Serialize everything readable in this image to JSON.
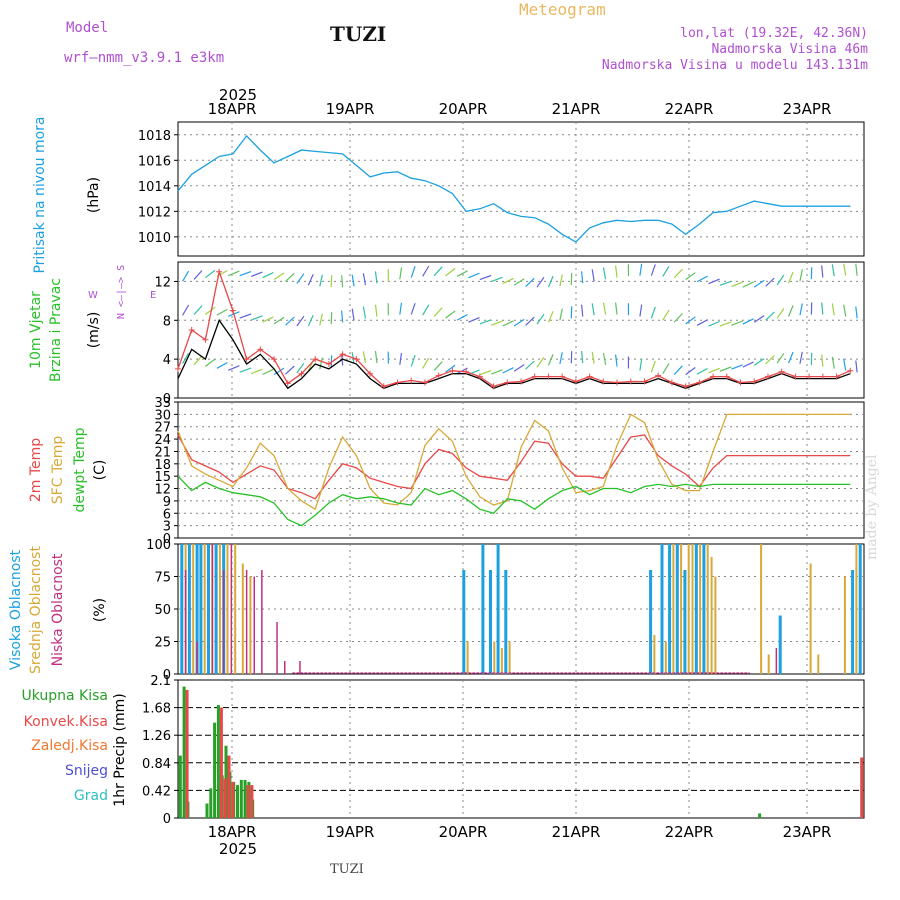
{
  "header": {
    "model_label": "Model",
    "model": "wrf–nmm_v3.9.1 e3km",
    "station": "TUZI",
    "title": "Meteogram",
    "location": "lon,lat (19.32E, 42.36N)",
    "altitude": "Nadmorska Visina 46m",
    "model_altitude": "Nadmorska Visina u modelu 143.131m",
    "footer_station": "TUZI",
    "watermark": "made by Angel"
  },
  "colors": {
    "pressure": "#1ca0e0",
    "temp2m": "#e84848",
    "sfc": "#d8a838",
    "dew": "#28c028",
    "high_cloud": "#1ca0e0",
    "mid_cloud": "#d8a838",
    "low_cloud": "#c03080",
    "total_precip": "#28a028",
    "conv_precip": "#e84848",
    "freezing": "#f07830",
    "snow": "#5050d8",
    "hail": "#30c0c0"
  },
  "chart_data": [
    {
      "type": "line",
      "id": "pressure",
      "ylabel": "Pritisak na nivou mora",
      "unit": "(hPa)",
      "ylim": [
        1008.5,
        1019
      ],
      "yticks": [
        "1010",
        "1012",
        "1014",
        "1016",
        "1018"
      ],
      "x_top_labels": [
        "18APR",
        "19APR",
        "20APR",
        "21APR",
        "22APR",
        "23APR"
      ],
      "year_label": "2025",
      "x_hours": [
        0,
        3,
        6,
        9,
        12,
        15,
        18,
        21,
        24,
        27,
        30,
        33,
        36,
        39,
        42,
        45,
        48,
        51,
        54,
        57,
        60,
        63,
        66,
        69,
        72,
        75,
        78,
        81,
        84,
        87,
        90,
        93,
        96,
        99,
        102,
        105,
        108,
        111,
        114,
        117,
        120,
        123,
        126,
        129,
        132,
        135,
        138,
        141,
        144,
        147
      ],
      "values": [
        1013.6,
        1014.9,
        1015.6,
        1016.3,
        1016.5,
        1017.9,
        1016.8,
        1015.8,
        1016.3,
        1016.8,
        1016.7,
        1016.6,
        1016.5,
        1015.6,
        1014.7,
        1015.0,
        1015.1,
        1014.6,
        1014.4,
        1014.0,
        1013.4,
        1012.0,
        1012.2,
        1012.6,
        1011.9,
        1011.6,
        1011.5,
        1011.0,
        1010.2,
        1009.6,
        1010.7,
        1011.1,
        1011.3,
        1011.2,
        1011.3,
        1011.3,
        1011.0,
        1010.2,
        1011.0,
        1011.9,
        1012.0,
        1012.4,
        1012.8,
        1012.6,
        1012.4,
        1012.4,
        1012.4,
        1012.4,
        1012.4,
        1012.4
      ]
    },
    {
      "type": "line",
      "id": "wind",
      "ylabel_lines": [
        "10m Vjetar",
        "Brzina i Pravac"
      ],
      "unit": "(m/s)",
      "ylim": [
        0,
        14
      ],
      "yticks": [
        "0",
        "4",
        "8",
        "12"
      ],
      "compass": "N\n<–|–>\nS",
      "compass_w": "W",
      "compass_e": "E",
      "series": [
        {
          "name": "speed",
          "values": [
            2.0,
            5.0,
            4.0,
            8.0,
            6.0,
            3.5,
            4.5,
            3.0,
            1.0,
            2.0,
            3.5,
            3.0,
            4.0,
            3.5,
            2.0,
            1.0,
            1.5,
            1.5,
            1.5,
            2.0,
            2.5,
            2.5,
            2.0,
            1.0,
            1.5,
            1.5,
            2.0,
            2.0,
            2.0,
            1.5,
            2.0,
            1.5,
            1.5,
            1.5,
            1.5,
            2.0,
            1.5,
            1.0,
            1.5,
            2.0,
            2.0,
            1.5,
            1.5,
            2.0,
            2.5,
            2.0,
            2.0,
            2.0,
            2.0,
            2.5
          ]
        },
        {
          "name": "gust",
          "values": [
            3.0,
            7.0,
            6.0,
            13.0,
            9.0,
            4.0,
            5.0,
            4.0,
            1.5,
            2.5,
            4.0,
            3.5,
            4.5,
            4.0,
            2.5,
            1.2,
            1.6,
            1.8,
            1.6,
            2.3,
            2.8,
            2.7,
            2.2,
            1.2,
            1.6,
            1.7,
            2.2,
            2.2,
            2.2,
            1.7,
            2.2,
            1.7,
            1.6,
            1.7,
            1.7,
            2.3,
            1.6,
            1.2,
            1.6,
            2.2,
            2.2,
            1.6,
            1.7,
            2.2,
            2.7,
            2.2,
            2.2,
            2.2,
            2.2,
            2.8
          ]
        }
      ]
    },
    {
      "type": "line",
      "id": "temperature",
      "ylabel_lines": [
        "2m Temp",
        "SFC Temp",
        "dewpt Temp"
      ],
      "unit": "(C)",
      "ylim": [
        0,
        33
      ],
      "yticks": [
        "0",
        "3",
        "6",
        "9",
        "12",
        "15",
        "18",
        "21",
        "24",
        "27",
        "30",
        "33"
      ],
      "series": [
        {
          "name": "2m Temp",
          "values": [
            25.0,
            19.0,
            17.5,
            16.0,
            13.5,
            15.5,
            17.5,
            16.5,
            12.0,
            11.0,
            9.5,
            14.0,
            18.0,
            17.0,
            14.5,
            13.5,
            12.5,
            12.0,
            18.0,
            21.5,
            20.5,
            17.0,
            15.0,
            14.5,
            14.0,
            18.5,
            23.5,
            23.0,
            18.0,
            15.0,
            15.0,
            14.5,
            19.5,
            24.5,
            25.0,
            20.0,
            17.5,
            15.5,
            12.5,
            17.0,
            20.0,
            20.0,
            20.0,
            20.0,
            20.0,
            20.0,
            20.0,
            20.0,
            20.0,
            20.0
          ]
        },
        {
          "name": "SFC Temp",
          "values": [
            26.0,
            17.5,
            15.5,
            14.0,
            12.5,
            17.0,
            23.0,
            20.0,
            12.0,
            9.0,
            7.0,
            17.0,
            24.5,
            20.0,
            12.0,
            8.5,
            8.0,
            11.0,
            22.5,
            26.5,
            23.5,
            15.0,
            10.0,
            8.0,
            9.0,
            22.0,
            28.5,
            26.0,
            17.0,
            11.0,
            11.5,
            12.5,
            22.5,
            30.0,
            28.0,
            19.0,
            13.0,
            11.5,
            11.5,
            21.0,
            30.0,
            30.0,
            30.0,
            30.0,
            30.0,
            30.0,
            30.0,
            30.0,
            30.0,
            30.0
          ]
        },
        {
          "name": "dewpt Temp",
          "values": [
            15.0,
            11.5,
            13.5,
            12.0,
            11.0,
            10.5,
            10.0,
            8.5,
            4.5,
            3.0,
            5.5,
            8.5,
            10.5,
            9.5,
            10.0,
            9.5,
            8.5,
            8.0,
            12.0,
            10.5,
            11.5,
            9.5,
            7.0,
            6.0,
            9.5,
            9.0,
            7.0,
            9.5,
            11.5,
            12.5,
            10.5,
            12.0,
            12.0,
            11.0,
            12.5,
            13.0,
            12.5,
            13.0,
            12.5,
            13.0,
            13.0,
            13.0,
            13.0,
            13.0,
            13.0,
            13.0,
            13.0,
            13.0,
            13.0,
            13.0
          ]
        }
      ]
    },
    {
      "type": "bar",
      "id": "clouds",
      "ylabel_lines": [
        "Visoka Oblacnost",
        "Srednja Oblacnost",
        "Niska Oblacnost"
      ],
      "unit": "(%)",
      "ylim": [
        0,
        100
      ],
      "yticks": [
        "0",
        "25",
        "50",
        "75",
        "100"
      ],
      "series": [
        {
          "name": "Visoka Oblacnost",
          "bars": [
            [
              1,
              100
            ],
            [
              3,
              100
            ],
            [
              5,
              100
            ],
            [
              6,
              100
            ],
            [
              8,
              100
            ],
            [
              10,
              100
            ],
            [
              12,
              100
            ],
            [
              75,
              80
            ],
            [
              80,
              100
            ],
            [
              82,
              80
            ],
            [
              84,
              100
            ],
            [
              86,
              80
            ],
            [
              124,
              80
            ],
            [
              127,
              100
            ],
            [
              129,
              100
            ],
            [
              131,
              100
            ],
            [
              133,
              80
            ],
            [
              136,
              100
            ],
            [
              138,
              100
            ],
            [
              158,
              45
            ],
            [
              177,
              80
            ],
            [
              179,
              100
            ]
          ]
        },
        {
          "name": "Srednja Oblacnost",
          "bars": [
            [
              2,
              100
            ],
            [
              4,
              100
            ],
            [
              7,
              100
            ],
            [
              9,
              100
            ],
            [
              11,
              100
            ],
            [
              13,
              100
            ],
            [
              15,
              100
            ],
            [
              17,
              85
            ],
            [
              19,
              75
            ],
            [
              76,
              25
            ],
            [
              83,
              25
            ],
            [
              85,
              20
            ],
            [
              87,
              25
            ],
            [
              125,
              30
            ],
            [
              128,
              25
            ],
            [
              130,
              100
            ],
            [
              132,
              100
            ],
            [
              134,
              100
            ],
            [
              135,
              100
            ],
            [
              137,
              100
            ],
            [
              139,
              100
            ],
            [
              140,
              90
            ],
            [
              141,
              75
            ],
            [
              153,
              100
            ],
            [
              155,
              15
            ],
            [
              166,
              85
            ],
            [
              168,
              15
            ],
            [
              175,
              75
            ],
            [
              178,
              100
            ]
          ]
        },
        {
          "name": "Niska Oblacnost",
          "bars": [
            [
              2,
              80
            ],
            [
              5,
              25
            ],
            [
              9,
              100
            ],
            [
              12,
              80
            ],
            [
              14,
              100
            ],
            [
              18,
              80
            ],
            [
              20,
              75
            ],
            [
              22,
              80
            ],
            [
              26,
              40
            ],
            [
              28,
              10
            ],
            [
              32,
              10
            ],
            [
              157,
              20
            ]
          ]
        }
      ]
    },
    {
      "type": "bar",
      "id": "precip",
      "ylabel": "1hr Precip",
      "unit": "(mm)",
      "ylim": [
        0,
        2.1
      ],
      "yticks": [
        "0",
        "0.42",
        "0.84",
        "1.26",
        "1.68",
        "2.1"
      ],
      "x_bottom_labels": [
        "18APR",
        "19APR",
        "20APR",
        "21APR",
        "22APR",
        "23APR"
      ],
      "year_label": "2025",
      "legend": [
        "Ukupna Kisa",
        "Konvek.Kisa",
        "Zaledj.Kisa",
        "Snijeg",
        "Grad"
      ],
      "series": [
        {
          "name": "Ukupna Kisa",
          "bars": [
            [
              1,
              0.95
            ],
            [
              2,
              2.0
            ],
            [
              3,
              0.25
            ],
            [
              8,
              0.22
            ],
            [
              9,
              0.45
            ],
            [
              10,
              1.45
            ],
            [
              11,
              1.72
            ],
            [
              12,
              0.65
            ],
            [
              13,
              1.1
            ],
            [
              14,
              0.7
            ],
            [
              15,
              0.55
            ],
            [
              16,
              0.5
            ],
            [
              17,
              0.58
            ],
            [
              18,
              0.58
            ],
            [
              19,
              0.55
            ],
            [
              20,
              0.28
            ],
            [
              153,
              0.07
            ]
          ]
        },
        {
          "name": "Konvek.Kisa",
          "bars": [
            [
              2,
              1.95
            ],
            [
              11,
              1.68
            ],
            [
              12,
              0.6
            ],
            [
              13,
              0.95
            ],
            [
              14,
              0.55
            ],
            [
              18,
              0.5
            ],
            [
              19,
              0.5
            ],
            [
              179,
              0.92
            ]
          ]
        }
      ]
    }
  ]
}
